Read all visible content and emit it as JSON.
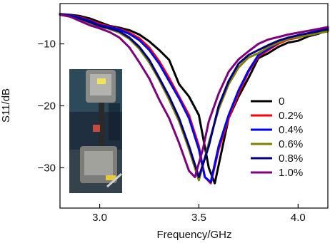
{
  "chart_data": {
    "type": "line",
    "xlabel": "Frequency/GHz",
    "ylabel": "S11/dB",
    "xlim": [
      2.8,
      4.15
    ],
    "ylim": [
      -36.5,
      -3.5
    ],
    "x_ticks": [
      3.0,
      3.5,
      4.0
    ],
    "x_tick_labels": [
      "3.0",
      "3.5",
      "4.0"
    ],
    "y_ticks": [
      -10,
      -20,
      -30
    ],
    "y_tick_labels": [
      "−10",
      "−20",
      "−30"
    ],
    "grid": false,
    "legend_position": "right",
    "inset": "photo of a sample clamped in a tensile testing machine",
    "series": [
      {
        "name": "0",
        "color": "#000000",
        "x": [
          2.8,
          2.85,
          2.9,
          2.95,
          3.0,
          3.05,
          3.1,
          3.15,
          3.2,
          3.25,
          3.3,
          3.35,
          3.4,
          3.45,
          3.5,
          3.55,
          3.58,
          3.62,
          3.65,
          3.7,
          3.75,
          3.8,
          3.85,
          3.9,
          3.95,
          4.0,
          4.05,
          4.1,
          4.15
        ],
        "y": [
          -5.2,
          -5.3,
          -5.5,
          -5.9,
          -6.5,
          -7.1,
          -7.4,
          -7.8,
          -8.5,
          -9.6,
          -11.0,
          -12.6,
          -16.5,
          -18.5,
          -21.5,
          -30.0,
          -32.5,
          -26.5,
          -22.0,
          -18.5,
          -15.5,
          -12.3,
          -11.5,
          -10.5,
          -9.8,
          -9.5,
          -8.8,
          -8.4,
          -7.8
        ]
      },
      {
        "name": "0.2%",
        "color": "#ff0000",
        "x": [
          2.8,
          2.85,
          2.9,
          2.95,
          3.0,
          3.05,
          3.1,
          3.15,
          3.2,
          3.25,
          3.3,
          3.35,
          3.4,
          3.45,
          3.5,
          3.53,
          3.56,
          3.6,
          3.65,
          3.7,
          3.75,
          3.8,
          3.85,
          3.9,
          3.95,
          4.0,
          4.05,
          4.1,
          4.15
        ],
        "y": [
          -5.2,
          -5.4,
          -5.7,
          -6.2,
          -6.8,
          -7.2,
          -7.6,
          -8.2,
          -9.1,
          -10.6,
          -12.8,
          -15.5,
          -18.5,
          -21.5,
          -26.5,
          -31.5,
          -32.5,
          -27.0,
          -22.0,
          -18.0,
          -14.5,
          -12.0,
          -11.0,
          -10.0,
          -9.3,
          -9.0,
          -8.4,
          -8.0,
          -7.5
        ]
      },
      {
        "name": "0.4%",
        "color": "#0000ff",
        "x": [
          2.8,
          2.85,
          2.9,
          2.95,
          3.0,
          3.05,
          3.1,
          3.15,
          3.2,
          3.25,
          3.3,
          3.35,
          3.4,
          3.45,
          3.5,
          3.53,
          3.56,
          3.6,
          3.65,
          3.7,
          3.75,
          3.8,
          3.85,
          3.9,
          3.95,
          4.0,
          4.05,
          4.1,
          4.15
        ],
        "y": [
          -5.2,
          -5.4,
          -5.8,
          -6.3,
          -7.0,
          -7.3,
          -7.7,
          -8.4,
          -9.4,
          -11.0,
          -13.2,
          -16.0,
          -18.8,
          -22.0,
          -27.0,
          -31.5,
          -32.3,
          -26.5,
          -21.5,
          -17.5,
          -14.3,
          -11.8,
          -10.8,
          -9.8,
          -9.2,
          -8.9,
          -8.3,
          -7.9,
          -7.4
        ]
      },
      {
        "name": "0.6%",
        "color": "#808000",
        "x": [
          2.8,
          2.85,
          2.9,
          2.95,
          3.0,
          3.05,
          3.1,
          3.15,
          3.2,
          3.25,
          3.3,
          3.35,
          3.4,
          3.45,
          3.5,
          3.55,
          3.6,
          3.65,
          3.7,
          3.75,
          3.8,
          3.85,
          3.9,
          3.95,
          4.0,
          4.05,
          4.1,
          4.15
        ],
        "y": [
          -5.3,
          -5.6,
          -6.0,
          -6.6,
          -7.2,
          -7.6,
          -8.2,
          -9.2,
          -10.8,
          -13.0,
          -15.8,
          -19.0,
          -22.5,
          -27.0,
          -32.0,
          -26.0,
          -20.5,
          -16.5,
          -13.8,
          -12.2,
          -11.5,
          -10.5,
          -9.8,
          -9.2,
          -8.9,
          -8.6,
          -8.3,
          -8.0
        ]
      },
      {
        "name": "0.8%",
        "color": "#000080",
        "x": [
          2.8,
          2.85,
          2.9,
          2.95,
          3.0,
          3.05,
          3.1,
          3.15,
          3.2,
          3.25,
          3.3,
          3.35,
          3.4,
          3.45,
          3.5,
          3.55,
          3.6,
          3.65,
          3.7,
          3.75,
          3.8,
          3.85,
          3.9,
          3.95,
          4.0,
          4.05,
          4.1,
          4.15
        ],
        "y": [
          -5.2,
          -5.5,
          -5.9,
          -6.5,
          -7.1,
          -7.5,
          -8.0,
          -9.0,
          -10.5,
          -12.6,
          -15.5,
          -18.5,
          -22.0,
          -26.5,
          -31.5,
          -26.5,
          -20.0,
          -16.0,
          -13.2,
          -11.8,
          -11.0,
          -10.2,
          -9.5,
          -9.0,
          -8.6,
          -8.3,
          -8.0,
          -7.6
        ]
      },
      {
        "name": "1.0%",
        "color": "#800080",
        "x": [
          2.8,
          2.85,
          2.9,
          2.95,
          3.0,
          3.05,
          3.1,
          3.15,
          3.2,
          3.25,
          3.3,
          3.35,
          3.4,
          3.45,
          3.48,
          3.52,
          3.55,
          3.6,
          3.65,
          3.7,
          3.75,
          3.8,
          3.85,
          3.9,
          3.95,
          4.0,
          4.05,
          4.1,
          4.15
        ],
        "y": [
          -5.3,
          -5.6,
          -6.3,
          -7.0,
          -7.5,
          -8.1,
          -9.0,
          -10.6,
          -13.0,
          -15.6,
          -19.0,
          -22.0,
          -26.0,
          -30.5,
          -31.5,
          -27.0,
          -22.5,
          -18.0,
          -14.5,
          -12.5,
          -11.2,
          -10.0,
          -9.3,
          -8.9,
          -8.5,
          -8.2,
          -7.9,
          -7.6,
          -7.3
        ]
      }
    ]
  }
}
